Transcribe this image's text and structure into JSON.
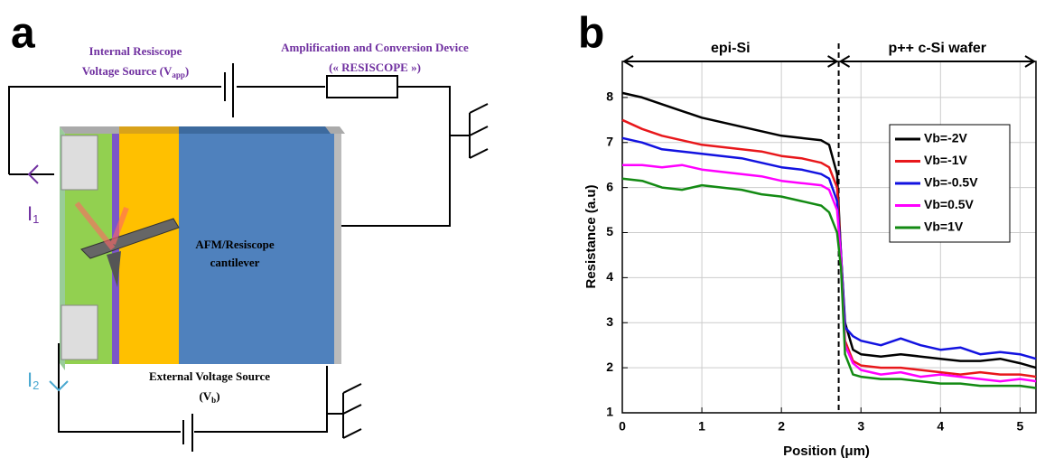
{
  "panel_a": {
    "label": "a",
    "internal_source": {
      "line1": "Internal Resiscope",
      "line2": "Voltage Source (V",
      "sub": "app",
      "end": ")"
    },
    "amplifier": {
      "line1": "Amplification and Conversion Device",
      "line2": "(« RESISCOPE »)"
    },
    "current_1": {
      "main": "I",
      "sub": "1"
    },
    "current_2": {
      "main": "I",
      "sub": "2"
    },
    "cantilever": {
      "line1": "AFM/Resiscope",
      "line2": "cantilever"
    },
    "external_source": {
      "line1": "External Voltage Source",
      "line2": "(V",
      "sub": "b",
      "end": ")"
    }
  },
  "chart_data": {
    "type": "line",
    "panel_label": "b",
    "x_label": "Position (μm)",
    "y_label": "Resistance (a.u)",
    "regions": [
      "epi-Si",
      "p++ c-Si wafer"
    ],
    "boundary_x": 2.72,
    "x": [
      0,
      0.25,
      0.5,
      0.75,
      1,
      1.25,
      1.5,
      1.75,
      2,
      2.25,
      2.5,
      2.6,
      2.7,
      2.75,
      2.8,
      2.9,
      3,
      3.25,
      3.5,
      3.75,
      4,
      4.25,
      4.5,
      4.75,
      5,
      5.2
    ],
    "series": [
      {
        "name": "Vb=-2V",
        "color": "#000000",
        "values": [
          8.1,
          8.0,
          7.85,
          7.7,
          7.55,
          7.45,
          7.35,
          7.25,
          7.15,
          7.1,
          7.05,
          6.95,
          6.3,
          4.5,
          3.0,
          2.4,
          2.3,
          2.25,
          2.3,
          2.25,
          2.2,
          2.15,
          2.15,
          2.2,
          2.1,
          2.0
        ]
      },
      {
        "name": "Vb=-1V",
        "color": "#e8171b",
        "values": [
          7.5,
          7.3,
          7.15,
          7.05,
          6.95,
          6.9,
          6.85,
          6.8,
          6.7,
          6.65,
          6.55,
          6.45,
          6.0,
          4.5,
          2.6,
          2.15,
          2.05,
          2.0,
          2.0,
          1.95,
          1.9,
          1.85,
          1.9,
          1.85,
          1.85,
          1.8
        ]
      },
      {
        "name": "Vb=-0.5V",
        "color": "#1212e0",
        "values": [
          7.1,
          7.0,
          6.85,
          6.8,
          6.75,
          6.7,
          6.65,
          6.55,
          6.45,
          6.4,
          6.3,
          6.2,
          5.7,
          4.5,
          2.9,
          2.7,
          2.6,
          2.5,
          2.65,
          2.5,
          2.4,
          2.45,
          2.3,
          2.35,
          2.3,
          2.2
        ]
      },
      {
        "name": "Vb=0.5V",
        "color": "#ff00ff",
        "values": [
          6.5,
          6.5,
          6.45,
          6.5,
          6.4,
          6.35,
          6.3,
          6.25,
          6.15,
          6.1,
          6.05,
          5.95,
          5.5,
          4.4,
          2.5,
          2.1,
          1.95,
          1.85,
          1.9,
          1.8,
          1.85,
          1.8,
          1.75,
          1.7,
          1.75,
          1.7
        ]
      },
      {
        "name": "Vb=1V",
        "color": "#138a13",
        "values": [
          6.2,
          6.15,
          6.0,
          5.95,
          6.05,
          6.0,
          5.95,
          5.85,
          5.8,
          5.7,
          5.6,
          5.45,
          5.0,
          4.2,
          2.3,
          1.85,
          1.8,
          1.75,
          1.75,
          1.7,
          1.65,
          1.65,
          1.6,
          1.6,
          1.6,
          1.55
        ]
      }
    ],
    "xlim": [
      0,
      5.2
    ],
    "xticks": [
      0,
      1,
      2,
      3,
      4,
      5
    ],
    "ylim": [
      1,
      8.8
    ],
    "yticks": [
      1,
      2,
      3,
      4,
      5,
      6,
      7,
      8
    ],
    "grid": true
  }
}
